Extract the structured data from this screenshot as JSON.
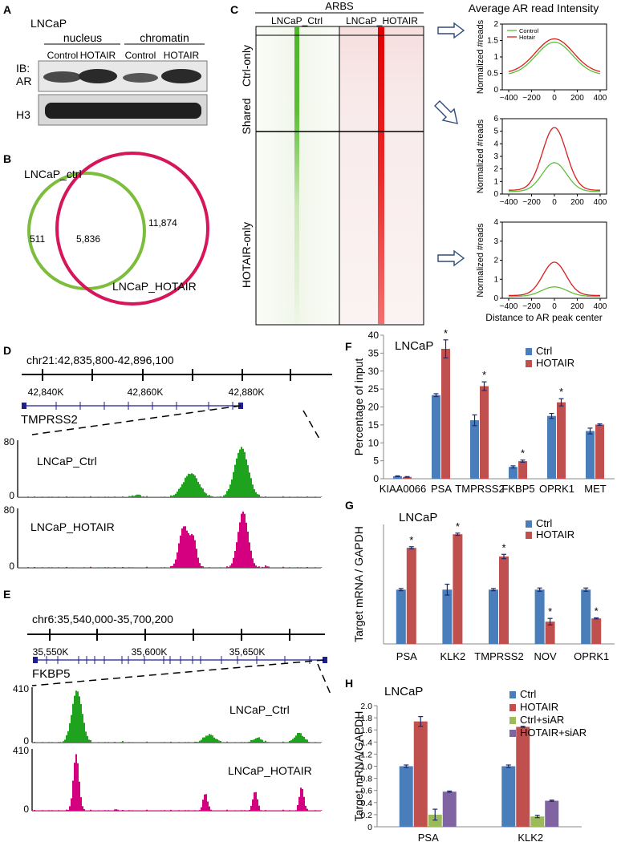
{
  "panel_letters": {
    "a": "A",
    "b": "B",
    "c": "C",
    "d": "D",
    "e": "E",
    "f": "F",
    "g": "G",
    "h": "H"
  },
  "panelA": {
    "cell_line": "LNCaP",
    "group_nucleus": "nucleus",
    "group_chromatin": "chromatin",
    "lanes": [
      "Control",
      "HOTAIR",
      "Control",
      "HOTAIR"
    ],
    "ib_label": "IB:",
    "row1": "AR",
    "row2": "H3"
  },
  "panelB": {
    "set1": "LNCaP_ctrl",
    "set2": "LNCaP_HOTAIR",
    "only1": "511",
    "overlap": "5,836",
    "only2": "11,874",
    "color1": "#7cbd3c",
    "color2": "#d6155a"
  },
  "panelC": {
    "header": "ARBS",
    "col1": "LNCaP_Ctrl",
    "col2": "LNCaP_HOTAIR",
    "rows": [
      "Ctrl-only",
      "Shared",
      "HOTAIR-only"
    ],
    "profile_title": "Average AR read Intensity",
    "ylabel": "Normalized #reads",
    "xlabel": "Distance to AR peak center",
    "legend": [
      "Control",
      "Hotair"
    ],
    "xticks": [
      "−400",
      "−200",
      "0",
      "200",
      "400"
    ],
    "chart_data": [
      {
        "type": "line",
        "x": [
          -400,
          -200,
          0,
          200,
          400
        ],
        "ylim": [
          0,
          2
        ],
        "yticks": [
          "0",
          "0.5",
          "1",
          "1.5",
          "2"
        ],
        "series": [
          {
            "name": "Control",
            "values": [
              0.45,
              0.9,
              1.45,
              0.9,
              0.45
            ]
          },
          {
            "name": "Hotair",
            "values": [
              0.5,
              1.0,
              1.55,
              1.0,
              0.5
            ]
          }
        ]
      },
      {
        "type": "line",
        "x": [
          -400,
          -200,
          0,
          200,
          400
        ],
        "ylim": [
          0,
          6
        ],
        "yticks": [
          "0",
          "1",
          "2",
          "3",
          "4",
          "5",
          "6"
        ],
        "series": [
          {
            "name": "Control",
            "values": [
              0.2,
              0.6,
              2.5,
              0.6,
              0.2
            ]
          },
          {
            "name": "Hotair",
            "values": [
              0.3,
              1.1,
              5.3,
              1.1,
              0.3
            ]
          }
        ]
      },
      {
        "type": "line",
        "x": [
          -400,
          -200,
          0,
          200,
          400
        ],
        "ylim": [
          0,
          4
        ],
        "yticks": [
          "0",
          "1",
          "2",
          "3",
          "4"
        ],
        "series": [
          {
            "name": "Control",
            "values": [
              0.1,
              0.2,
              0.6,
              0.2,
              0.1
            ]
          },
          {
            "name": "Hotair",
            "values": [
              0.15,
              0.4,
              1.9,
              0.4,
              0.15
            ]
          }
        ]
      }
    ]
  },
  "panelD": {
    "coords": "chr21:42,835,800-42,896,100",
    "ticks": [
      "42,840K",
      "42,860K",
      "42,880K"
    ],
    "gene": "TMPRSS2",
    "tracks": [
      {
        "name": "LNCaP_Ctrl",
        "max": "80",
        "min": "0",
        "color": "#1fa31f"
      },
      {
        "name": "LNCaP_HOTAIR",
        "max": "80",
        "min": "0",
        "color": "#d4007f"
      }
    ]
  },
  "panelE": {
    "coords": "chr6:35,540,000-35,700,200",
    "ticks": [
      "35,550K",
      "35,600K",
      "35,650K"
    ],
    "gene": "FKBP5",
    "tracks": [
      {
        "name": "LNCaP_Ctrl",
        "max": "410",
        "min": "0",
        "color": "#1fa31f"
      },
      {
        "name": "LNCaP_HOTAIR",
        "max": "410",
        "min": "0",
        "color": "#d4007f"
      }
    ]
  },
  "panelF": {
    "title": "LNCaP",
    "chart_data": {
      "type": "bar",
      "ylabel": "Percentage of input",
      "ylim": [
        0,
        40
      ],
      "yticks": [
        "0",
        "5",
        "10",
        "15",
        "20",
        "25",
        "30",
        "35",
        "40"
      ],
      "categories": [
        "KIAA0066",
        "PSA",
        "TMPRSS2",
        "FKBP5",
        "OPRK1",
        "MET"
      ],
      "series": [
        {
          "name": "Ctrl",
          "color": "#4a7ebb",
          "values": [
            0.7,
            23.3,
            16.3,
            3.3,
            17.5,
            13.3
          ],
          "errors": [
            0.1,
            0.4,
            1.5,
            0.3,
            0.7,
            0.8
          ]
        },
        {
          "name": "HOTAIR",
          "color": "#c0504d",
          "values": [
            0.5,
            36.2,
            25.8,
            4.9,
            21.3,
            15.1
          ],
          "errors": [
            0.1,
            2.5,
            1.2,
            0.3,
            1.0,
            0.2
          ]
        }
      ],
      "significant": [
        false,
        true,
        true,
        true,
        true,
        false
      ]
    }
  },
  "panelG": {
    "title": "LNCaP",
    "chart_data": {
      "type": "bar",
      "ylabel": "Target mRNA / GAPDH",
      "ylim": [
        0,
        2.2
      ],
      "yticks": [],
      "categories": [
        "PSA",
        "KLK2",
        "TMPRSS2",
        "NOV",
        "OPRK1"
      ],
      "series": [
        {
          "name": "Ctrl",
          "color": "#4a7ebb",
          "values": [
            1.0,
            1.0,
            1.0,
            1.0,
            1.0
          ],
          "errors": [
            0.02,
            0.1,
            0.02,
            0.03,
            0.03
          ]
        },
        {
          "name": "HOTAIR",
          "color": "#c0504d",
          "values": [
            1.77,
            2.02,
            1.61,
            0.41,
            0.47
          ],
          "errors": [
            0.02,
            0.02,
            0.04,
            0.06,
            0.01
          ]
        }
      ],
      "significant": [
        true,
        true,
        true,
        true,
        true
      ]
    }
  },
  "panelH": {
    "title": "LNCaP",
    "chart_data": {
      "type": "bar",
      "ylabel": "Target mRNA/GAPDH",
      "ylim": [
        0,
        2.0
      ],
      "yticks": [
        "0",
        "0.2",
        "0.4",
        "0.6",
        "0.8",
        "1.0",
        "1.2",
        "1.4",
        "1.6",
        "1.8",
        "2.0"
      ],
      "categories": [
        "PSA",
        "KLK2"
      ],
      "series": [
        {
          "name": "Ctrl",
          "color": "#4a7ebb",
          "values": [
            1.0,
            1.0
          ],
          "errors": [
            0.02,
            0.02
          ]
        },
        {
          "name": "HOTAIR",
          "color": "#c0504d",
          "values": [
            1.74,
            1.65
          ],
          "errors": [
            0.08,
            0.01
          ]
        },
        {
          "name": "Ctrl+siAR",
          "color": "#9bbb59",
          "values": [
            0.2,
            0.17
          ],
          "errors": [
            0.09,
            0.02
          ]
        },
        {
          "name": "HOTAIR+siAR",
          "color": "#8064a2",
          "values": [
            0.58,
            0.43
          ],
          "errors": [
            0.01,
            0.01
          ]
        }
      ]
    }
  }
}
